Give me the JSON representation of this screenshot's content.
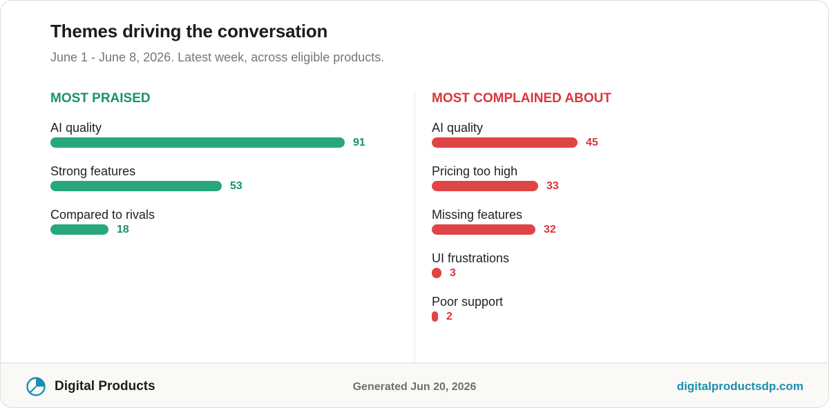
{
  "header": {
    "title": "Themes driving the conversation",
    "subtitle": "June 1 - June 8, 2026. Latest week, across eligible products."
  },
  "chart_data": [
    {
      "type": "bar",
      "orientation": "horizontal",
      "title": "MOST PRAISED",
      "color": "#28a77e",
      "categories": [
        "AI quality",
        "Strong features",
        "Compared to rivals"
      ],
      "values": [
        91,
        53,
        18
      ]
    },
    {
      "type": "bar",
      "orientation": "horizontal",
      "title": "MOST COMPLAINED ABOUT",
      "color": "#e04545",
      "categories": [
        "AI quality",
        "Pricing too high",
        "Missing features",
        "UI frustrations",
        "Poor support"
      ],
      "values": [
        45,
        33,
        32,
        3,
        2
      ]
    }
  ],
  "footer": {
    "brand": "Digital Products",
    "logo_icon": "pie-chart-icon",
    "generated": "Generated Jun 20, 2026",
    "link": "digitalproductsdp.com"
  },
  "colors": {
    "praised": "#28a77e",
    "complained": "#e04545",
    "link": "#1b8fb0"
  }
}
